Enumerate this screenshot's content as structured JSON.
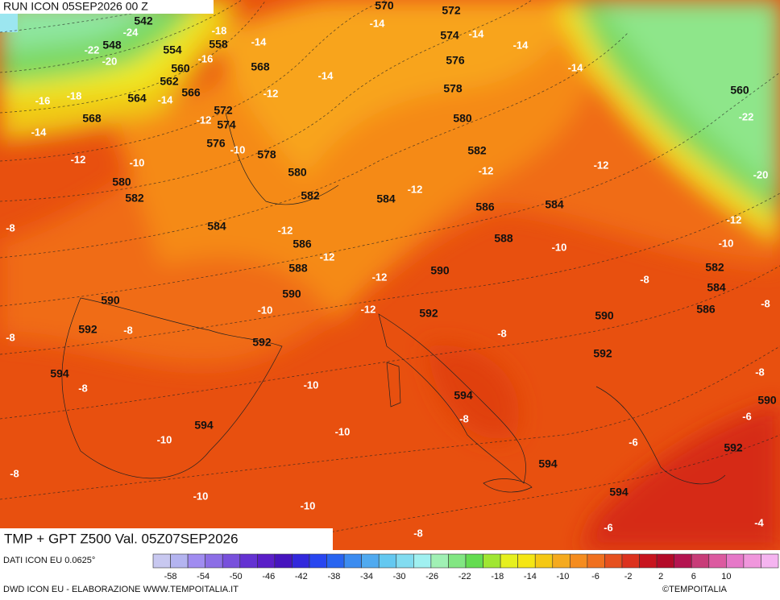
{
  "header": {
    "run": "RUN ICON 05SEP2026 00 Z",
    "title": "TMP + GPT Z500 Val. 05Z07SEP2026",
    "source": "DATI ICON EU 0.0625°",
    "credit": "DWD ICON EU - ELABORAZIONE WWW.TEMPOITALIA.IT",
    "logo": "©TEMPOITALIA"
  },
  "geopotential_labels": [
    542,
    548,
    554,
    560,
    562,
    564,
    566,
    568,
    568,
    570,
    572,
    572,
    574,
    574,
    576,
    576,
    578,
    578,
    580,
    580,
    580,
    582,
    582,
    582,
    582,
    584,
    584,
    584,
    584,
    586,
    586,
    586,
    588,
    588,
    590,
    590,
    590,
    590,
    590,
    592,
    592,
    592,
    592,
    592,
    594,
    594,
    594,
    594,
    594,
    558,
    560
  ],
  "temperature_labels": [
    -14,
    -14,
    -14,
    -14,
    -14,
    -14,
    -14,
    -14,
    -16,
    -16,
    -18,
    -18,
    -20,
    -22,
    -22,
    -20,
    -24,
    -12,
    -12,
    -12,
    -12,
    -12,
    -12,
    -12,
    -12,
    -12,
    -12,
    -12,
    -10,
    -10,
    -10,
    -10,
    -10,
    -10,
    -10,
    -10,
    -10,
    -10,
    -8,
    -8,
    -8,
    -8,
    -8,
    -8,
    -8,
    -8,
    -8,
    -8,
    -8,
    -6,
    -6,
    -6,
    -4
  ],
  "colorbar": {
    "ticks": [
      -58,
      -54,
      -50,
      -46,
      -42,
      -38,
      -34,
      -30,
      -26,
      -22,
      -18,
      -14,
      -10,
      -6,
      -2,
      2,
      6,
      10
    ],
    "colors": [
      "#c8c8f0",
      "#b4b4f0",
      "#a08cf0",
      "#8c6ee6",
      "#7850dc",
      "#6432d2",
      "#5a1ec8",
      "#4614be",
      "#3228dc",
      "#2846f0",
      "#2864f0",
      "#3c8cf0",
      "#50aaf0",
      "#64c8f0",
      "#82dcf0",
      "#a0f0f0",
      "#a0f0b4",
      "#82e682",
      "#64dc50",
      "#a0e632",
      "#e6f01e",
      "#f5e614",
      "#f5c814",
      "#f5aa1e",
      "#f58c1e",
      "#f0701e",
      "#e6501e",
      "#dc321e",
      "#c8141e",
      "#b40a28",
      "#b41450",
      "#c83c78",
      "#dc5aa0",
      "#e678c8",
      "#f096dc",
      "#f5b4f0"
    ]
  }
}
